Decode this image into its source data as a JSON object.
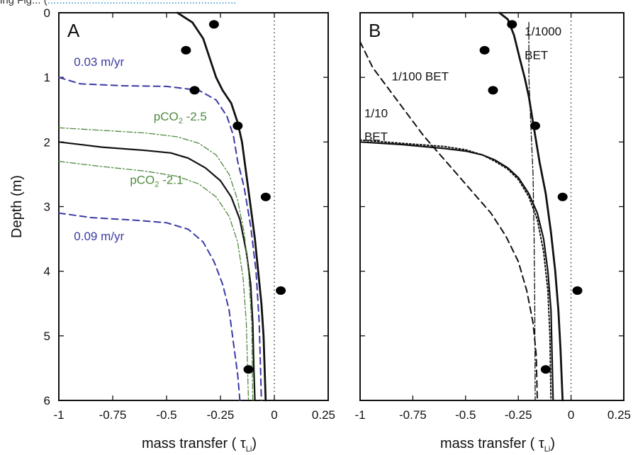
{
  "page_top_cut_text": "ing Fig... (",
  "page_top_cut_link": "................................................................",
  "chart_data": [
    {
      "type": "line",
      "panel_label": "A",
      "xlabel": "mass transfer (",
      "xlabel_symbol": "τ",
      "xlabel_sub": "Li",
      "xlabel_close": ")",
      "ylabel": "Depth (m)",
      "xlim": [
        -1,
        0.25
      ],
      "ylim": [
        6,
        0
      ],
      "xticks": [
        -1,
        -0.75,
        -0.5,
        -0.25,
        0,
        0.25
      ],
      "xtick_labels": [
        "-1",
        "-0.75",
        "-0.5",
        "-0.25",
        "0",
        "0.25"
      ],
      "yticks": [
        0,
        1,
        2,
        3,
        4,
        5,
        6
      ],
      "ytick_labels": [
        "0",
        "1",
        "2",
        "3",
        "4",
        "5",
        "6"
      ],
      "reference_line_x": 0,
      "series": [
        {
          "style": "solid-thick",
          "color": "#111111",
          "points": [
            [
              -0.45,
              0
            ],
            [
              -0.38,
              0.15
            ],
            [
              -0.33,
              0.4
            ],
            [
              -0.29,
              0.8
            ],
            [
              -0.27,
              1.0
            ],
            [
              -0.24,
              1.2
            ],
            [
              -0.2,
              1.4
            ],
            [
              -0.17,
              1.7
            ],
            [
              -0.15,
              2.0
            ],
            [
              -0.13,
              2.5
            ],
            [
              -0.11,
              3.0
            ],
            [
              -0.09,
              3.5
            ],
            [
              -0.075,
              4.0
            ],
            [
              -0.06,
              4.5
            ],
            [
              -0.05,
              5.0
            ],
            [
              -0.045,
              5.5
            ],
            [
              -0.04,
              6.0
            ]
          ]
        },
        {
          "style": "solid",
          "color": "#111111",
          "points": [
            [
              -1,
              2.0
            ],
            [
              -0.8,
              2.08
            ],
            [
              -0.6,
              2.13
            ],
            [
              -0.48,
              2.17
            ],
            [
              -0.4,
              2.25
            ],
            [
              -0.32,
              2.4
            ],
            [
              -0.25,
              2.6
            ],
            [
              -0.2,
              2.85
            ],
            [
              -0.16,
              3.2
            ],
            [
              -0.13,
              3.7
            ],
            [
              -0.11,
              4.2
            ],
            [
              -0.1,
              4.8
            ],
            [
              -0.095,
              5.5
            ],
            [
              -0.09,
              6.0
            ]
          ]
        },
        {
          "style": "dashed",
          "color": "#3a3aa6",
          "label": "0.03 m/yr",
          "points": [
            [
              -1,
              1.0
            ],
            [
              -0.9,
              1.1
            ],
            [
              -0.7,
              1.13
            ],
            [
              -0.5,
              1.14
            ],
            [
              -0.35,
              1.2
            ],
            [
              -0.27,
              1.35
            ],
            [
              -0.22,
              1.6
            ],
            [
              -0.19,
              1.9
            ],
            [
              -0.17,
              2.3
            ],
            [
              -0.14,
              2.7
            ],
            [
              -0.11,
              3.3
            ],
            [
              -0.085,
              4.0
            ],
            [
              -0.07,
              4.8
            ],
            [
              -0.06,
              6.0
            ]
          ]
        },
        {
          "style": "dashed",
          "color": "#3a3aa6",
          "label": "0.09 m/yr",
          "points": [
            [
              -1,
              3.1
            ],
            [
              -0.85,
              3.17
            ],
            [
              -0.65,
              3.21
            ],
            [
              -0.5,
              3.25
            ],
            [
              -0.4,
              3.35
            ],
            [
              -0.33,
              3.55
            ],
            [
              -0.28,
              3.85
            ],
            [
              -0.24,
              4.2
            ],
            [
              -0.21,
              4.6
            ],
            [
              -0.19,
              5.1
            ],
            [
              -0.17,
              5.6
            ],
            [
              -0.16,
              6.0
            ]
          ]
        },
        {
          "style": "dashdot",
          "color": "#4f8a3f",
          "label": "pCO2 -2.5",
          "points": [
            [
              -1,
              1.78
            ],
            [
              -0.8,
              1.82
            ],
            [
              -0.6,
              1.86
            ],
            [
              -0.45,
              1.92
            ],
            [
              -0.35,
              2.02
            ],
            [
              -0.27,
              2.2
            ],
            [
              -0.21,
              2.5
            ],
            [
              -0.17,
              2.9
            ],
            [
              -0.14,
              3.4
            ],
            [
              -0.12,
              4.0
            ],
            [
              -0.105,
              4.8
            ],
            [
              -0.1,
              6.0
            ]
          ]
        },
        {
          "style": "dashdot",
          "color": "#4f8a3f",
          "label": "pCO2 -2.1",
          "points": [
            [
              -1,
              2.3
            ],
            [
              -0.8,
              2.38
            ],
            [
              -0.6,
              2.45
            ],
            [
              -0.45,
              2.53
            ],
            [
              -0.35,
              2.65
            ],
            [
              -0.27,
              2.85
            ],
            [
              -0.21,
              3.15
            ],
            [
              -0.17,
              3.55
            ],
            [
              -0.145,
              4.1
            ],
            [
              -0.13,
              4.8
            ],
            [
              -0.12,
              6.0
            ]
          ]
        }
      ],
      "observations": [
        [
          -0.28,
          0.18
        ],
        [
          -0.41,
          0.58
        ],
        [
          -0.37,
          1.2
        ],
        [
          -0.17,
          1.75
        ],
        [
          -0.04,
          2.85
        ],
        [
          0.03,
          4.3
        ],
        [
          -0.12,
          5.52
        ]
      ],
      "annotations": [
        {
          "text": "0.03 m/yr",
          "x": -0.93,
          "y": 0.82,
          "color": "#3a3aa6"
        },
        {
          "text": "0.09 m/yr",
          "x": -0.93,
          "y": 3.52,
          "color": "#3a3aa6"
        },
        {
          "text": "pCO",
          "sub": "2",
          "tail": " -2.5",
          "x": -0.56,
          "y": 1.67,
          "color": "#4f8a3f"
        },
        {
          "text": "pCO",
          "sub": "2",
          "tail": " -2.1",
          "x": -0.67,
          "y": 2.65,
          "color": "#4f8a3f"
        }
      ]
    },
    {
      "type": "line",
      "panel_label": "B",
      "xlabel": "mass transfer (",
      "xlabel_symbol": "τ",
      "xlabel_sub": "Li",
      "xlabel_close": ")",
      "ylabel": "",
      "xlim": [
        -1,
        0.25
      ],
      "ylim": [
        6,
        0
      ],
      "xticks": [
        -1,
        -0.75,
        -0.5,
        -0.25,
        0,
        0.25
      ],
      "xtick_labels": [
        "-1",
        "-0.75",
        "-0.5",
        "-0.25",
        "0",
        "0.25"
      ],
      "yticks": [
        0,
        1,
        2,
        3,
        4,
        5,
        6
      ],
      "ytick_labels": [],
      "reference_line_x": 0,
      "series": [
        {
          "style": "solid-thick",
          "color": "#111111",
          "points": [
            [
              -0.34,
              0
            ],
            [
              -0.3,
              0.1
            ],
            [
              -0.27,
              0.35
            ],
            [
              -0.24,
              0.75
            ],
            [
              -0.22,
              1.0
            ],
            [
              -0.2,
              1.3
            ],
            [
              -0.185,
              1.6
            ],
            [
              -0.17,
              1.9
            ],
            [
              -0.15,
              2.3
            ],
            [
              -0.12,
              2.8
            ],
            [
              -0.095,
              3.4
            ],
            [
              -0.075,
              4.0
            ],
            [
              -0.06,
              4.6
            ],
            [
              -0.05,
              5.2
            ],
            [
              -0.04,
              6.0
            ]
          ]
        },
        {
          "style": "solid",
          "color": "#111111",
          "points": [
            [
              -1,
              2.0
            ],
            [
              -0.8,
              2.04
            ],
            [
              -0.6,
              2.1
            ],
            [
              -0.5,
              2.14
            ],
            [
              -0.42,
              2.2
            ],
            [
              -0.36,
              2.28
            ],
            [
              -0.3,
              2.4
            ],
            [
              -0.25,
              2.55
            ],
            [
              -0.2,
              2.8
            ],
            [
              -0.16,
              3.1
            ],
            [
              -0.13,
              3.5
            ],
            [
              -0.11,
              4.0
            ],
            [
              -0.095,
              4.6
            ],
            [
              -0.09,
              5.3
            ],
            [
              -0.085,
              6.0
            ]
          ]
        },
        {
          "style": "dotted",
          "color": "#111111",
          "label": "1/10 BET",
          "points": [
            [
              -1,
              1.97
            ],
            [
              -0.8,
              2.02
            ],
            [
              -0.6,
              2.07
            ],
            [
              -0.5,
              2.12
            ],
            [
              -0.42,
              2.2
            ],
            [
              -0.36,
              2.3
            ],
            [
              -0.3,
              2.42
            ],
            [
              -0.25,
              2.58
            ],
            [
              -0.2,
              2.85
            ],
            [
              -0.16,
              3.2
            ],
            [
              -0.13,
              3.7
            ],
            [
              -0.11,
              4.3
            ],
            [
              -0.1,
              5.0
            ],
            [
              -0.095,
              6.0
            ]
          ]
        },
        {
          "style": "dashed",
          "color": "#111111",
          "label": "1/100 BET",
          "points": [
            [
              -1,
              0.45
            ],
            [
              -0.94,
              0.85
            ],
            [
              -0.86,
              1.2
            ],
            [
              -0.78,
              1.55
            ],
            [
              -0.7,
              1.9
            ],
            [
              -0.62,
              2.2
            ],
            [
              -0.54,
              2.5
            ],
            [
              -0.46,
              2.8
            ],
            [
              -0.38,
              3.1
            ],
            [
              -0.31,
              3.45
            ],
            [
              -0.25,
              3.85
            ],
            [
              -0.21,
              4.3
            ],
            [
              -0.18,
              4.8
            ],
            [
              -0.165,
              5.3
            ],
            [
              -0.16,
              6.0
            ]
          ]
        },
        {
          "style": "dashdot",
          "color": "#111111",
          "label": "1/1000 BET",
          "points": [
            [
              -0.2,
              0.15
            ],
            [
              -0.2,
              1.0
            ],
            [
              -0.19,
              1.8
            ],
            [
              -0.18,
              2.5
            ],
            [
              -0.175,
              3.5
            ],
            [
              -0.172,
              4.5
            ],
            [
              -0.17,
              6.0
            ]
          ]
        }
      ],
      "observations": [
        [
          -0.28,
          0.18
        ],
        [
          -0.41,
          0.58
        ],
        [
          -0.37,
          1.2
        ],
        [
          -0.17,
          1.75
        ],
        [
          -0.04,
          2.85
        ],
        [
          0.03,
          4.3
        ],
        [
          -0.12,
          5.52
        ]
      ],
      "annotations": [
        {
          "text": "1/1000",
          "x": -0.22,
          "y": 0.35,
          "color": "#111111"
        },
        {
          "text": "BET",
          "x": -0.22,
          "y": 0.72,
          "color": "#111111"
        },
        {
          "text": "1/100 BET",
          "x": -0.85,
          "y": 1.05,
          "color": "#111111"
        },
        {
          "text": "1/10",
          "x": -0.98,
          "y": 1.62,
          "color": "#111111"
        },
        {
          "text": "BET",
          "x": -0.98,
          "y": 1.98,
          "color": "#111111"
        }
      ]
    }
  ]
}
